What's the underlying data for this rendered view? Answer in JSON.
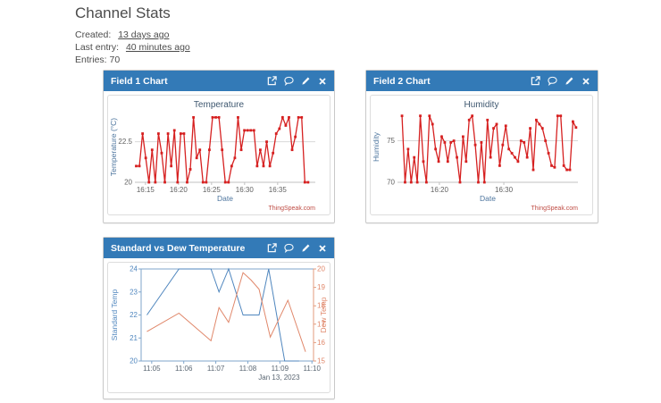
{
  "page": {
    "title": "Channel Stats",
    "created_label": "Created:",
    "created_value": "13 days ago",
    "last_entry_label": "Last entry:",
    "last_entry_value": "40 minutes ago",
    "entries": "Entries: 70"
  },
  "panels": [
    {
      "title": "Field 1 Chart"
    },
    {
      "title": "Field 2 Chart"
    },
    {
      "title": "Standard vs Dew Temperature"
    }
  ],
  "panel_icon_names": [
    "external-link",
    "comment",
    "edit",
    "close"
  ],
  "colors": {
    "panel_header_blue": "#337ab7",
    "chart_line_red": "#d62020",
    "standard_temp_blue": "#4f86be",
    "dew_temp_orange": "#e0876a",
    "credit_red": "#bf4b43",
    "chart_title_blue": "#3e576f",
    "axis_title_blue": "#4d759e",
    "tick_gray": "#606060"
  },
  "chart_data": [
    {
      "type": "line",
      "title": "Temperature",
      "xlabel": "Date",
      "ylabel": "Temperature (°C)",
      "credit": "ThingSpeak.com",
      "line_color": "#d62020",
      "x_unit": "minutes after 16:00",
      "xlim": [
        13.4,
        40.7
      ],
      "x_data_range": [
        13.6,
        39.6
      ],
      "x_ticks": [
        {
          "v": 15,
          "label": "16:15"
        },
        {
          "v": 20,
          "label": "16:20"
        },
        {
          "v": 25,
          "label": "16:25"
        },
        {
          "v": 30,
          "label": "16:30"
        },
        {
          "v": 35,
          "label": "16:35"
        }
      ],
      "ylim": [
        20,
        24.35
      ],
      "y_ticks": [
        {
          "v": 20,
          "label": "20"
        },
        {
          "v": 22.5,
          "label": "22.5"
        }
      ],
      "grid_y": [
        22.5
      ],
      "values": [
        21,
        21,
        23,
        21.5,
        20,
        22,
        20,
        23,
        21.8,
        20,
        23,
        21,
        23.2,
        20,
        23,
        23,
        20,
        20.8,
        24,
        21.5,
        22,
        20,
        20,
        22,
        24,
        24,
        24,
        22,
        20,
        20,
        21,
        21.5,
        24,
        22,
        23.2,
        23.2,
        23.2,
        23.2,
        21,
        22,
        21,
        22.5,
        21,
        21.8,
        23,
        23.3,
        24,
        23.5,
        24,
        22,
        22.8,
        24,
        24,
        20,
        20
      ]
    },
    {
      "type": "line",
      "title": "Humidity",
      "xlabel": "Date",
      "ylabel": "Humidity",
      "credit": "ThingSpeak.com",
      "line_color": "#d62020",
      "x_unit": "minutes after 16:00",
      "xlim": [
        13.5,
        41.5
      ],
      "x_data_range": [
        14.2,
        41.2
      ],
      "x_ticks": [
        {
          "v": 20,
          "label": "16:20"
        },
        {
          "v": 30,
          "label": "16:30"
        }
      ],
      "ylim": [
        70,
        78.5
      ],
      "y_ticks": [
        {
          "v": 70,
          "label": "70"
        },
        {
          "v": 75,
          "label": "75"
        }
      ],
      "grid_y": [
        75
      ],
      "values": [
        78,
        70,
        74,
        70,
        73,
        70,
        78,
        72.5,
        70,
        78,
        77,
        74,
        72.5,
        75.5,
        74.8,
        72.5,
        74.8,
        75,
        73,
        70,
        75.5,
        72.5,
        77.5,
        78,
        74.5,
        70,
        74.8,
        70,
        77.5,
        73,
        76.5,
        77,
        72,
        74.5,
        76.8,
        74,
        73.5,
        73,
        72.5,
        75,
        74.8,
        73,
        76.5,
        71.5,
        77.5,
        77,
        76.5,
        75,
        73.5,
        72,
        71.8,
        78,
        78,
        72,
        71.5,
        71.5,
        77.3,
        76.6
      ]
    },
    {
      "type": "dual-line",
      "title": "Standard vs Dew Temperature",
      "x_unit": "minutes after 11:00",
      "date_label": "Jan 13, 2023",
      "xlim": [
        4.67,
        10.05
      ],
      "x_ticks": [
        {
          "v": 5,
          "label": "11:05"
        },
        {
          "v": 6,
          "label": "11:06"
        },
        {
          "v": 7,
          "label": "11:07"
        },
        {
          "v": 8,
          "label": "11:08"
        },
        {
          "v": 9,
          "label": "11:09"
        },
        {
          "v": 10,
          "label": "11:10"
        }
      ],
      "left_axis": {
        "label": "Standard Temp",
        "ylim": [
          20,
          24
        ],
        "ticks": [
          20,
          21,
          22,
          23,
          24
        ],
        "color": "#4f86be"
      },
      "right_axis": {
        "label": "Dew Temp",
        "ylim": [
          15,
          20
        ],
        "ticks": [
          15,
          16,
          17,
          18,
          19,
          20
        ],
        "color": "#e0876a"
      },
      "series": [
        {
          "name": "Standard Temp",
          "axis": "left",
          "color": "#4f86be",
          "points": [
            [
              4.85,
              22
            ],
            [
              5.85,
              24
            ],
            [
              6.85,
              24
            ],
            [
              7.1,
              23
            ],
            [
              7.4,
              24
            ],
            [
              7.85,
              22
            ],
            [
              8.35,
              22
            ],
            [
              8.65,
              24
            ],
            [
              9.15,
              20
            ],
            [
              9.6,
              20
            ]
          ]
        },
        {
          "name": "Dew Temp",
          "axis": "right",
          "color": "#e0876a",
          "points": [
            [
              4.85,
              16.6
            ],
            [
              5.85,
              17.6
            ],
            [
              6.85,
              16.1
            ],
            [
              7.1,
              17.9
            ],
            [
              7.4,
              17.1
            ],
            [
              7.85,
              19.8
            ],
            [
              8.1,
              19.4
            ],
            [
              8.35,
              18.9
            ],
            [
              8.7,
              16.3
            ],
            [
              9.25,
              18.3
            ],
            [
              9.8,
              15.5
            ]
          ]
        }
      ]
    }
  ]
}
